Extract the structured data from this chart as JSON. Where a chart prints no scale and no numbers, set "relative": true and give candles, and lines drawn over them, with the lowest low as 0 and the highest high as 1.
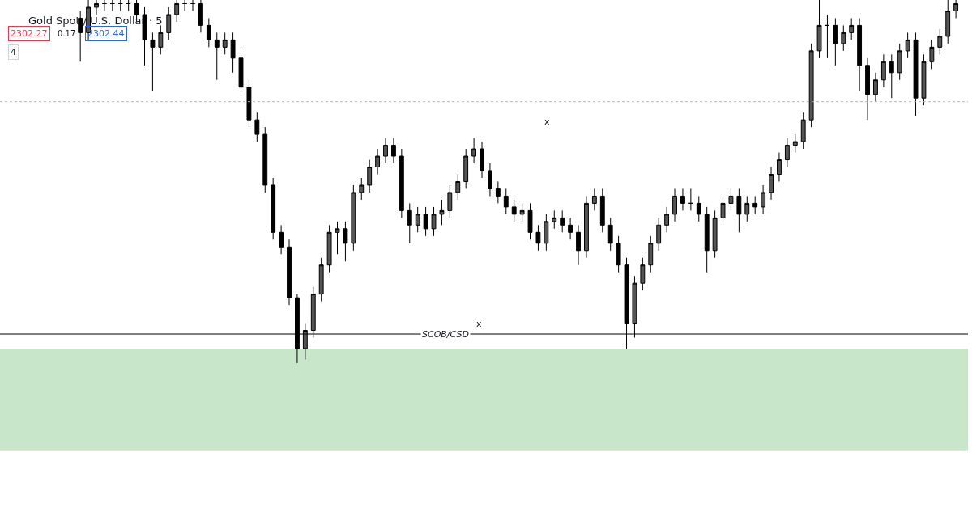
{
  "chart_data": {
    "type": "candlestick",
    "title": "Gold Spot / U.S. Dollar · 5",
    "relative": true,
    "color": "#000000",
    "categories": [
      null,
      null,
      null,
      null,
      null,
      null,
      null,
      null,
      null,
      null,
      null,
      null,
      null,
      null,
      null,
      null,
      null,
      null,
      null,
      null,
      null,
      null,
      null,
      null,
      null,
      null,
      null,
      null,
      null,
      null,
      null,
      null,
      null,
      null,
      null,
      null,
      null,
      null,
      null,
      null,
      null,
      null,
      null,
      null,
      null,
      null,
      null,
      null,
      null,
      null,
      null,
      null,
      null,
      null,
      null,
      null,
      null,
      null,
      null,
      null,
      null,
      null,
      null,
      null,
      null,
      null,
      null,
      null,
      null,
      null,
      null,
      null,
      null,
      null,
      null,
      null,
      null,
      null,
      null,
      null,
      null,
      null,
      null,
      null,
      null,
      null,
      null,
      null,
      null,
      null,
      null,
      null,
      null,
      null,
      null,
      null,
      null,
      null,
      null,
      null,
      null,
      null,
      null,
      null,
      null,
      null,
      null,
      null,
      null,
      null
    ],
    "ohlc": [
      [
        0.95,
        0.97,
        0.83,
        0.91
      ],
      [
        0.91,
        1.0,
        0.89,
        0.98
      ],
      [
        0.98,
        1.0,
        0.96,
        0.99
      ],
      [
        0.99,
        1.0,
        0.97,
        0.99
      ],
      [
        0.99,
        1.0,
        0.97,
        0.99
      ],
      [
        0.99,
        1.0,
        0.97,
        0.99
      ],
      [
        0.99,
        1.0,
        0.97,
        0.99
      ],
      [
        0.99,
        1.0,
        0.94,
        0.96
      ],
      [
        0.96,
        0.98,
        0.82,
        0.89
      ],
      [
        0.89,
        0.91,
        0.75,
        0.87
      ],
      [
        0.87,
        0.93,
        0.85,
        0.91
      ],
      [
        0.91,
        0.98,
        0.89,
        0.96
      ],
      [
        0.96,
        1.0,
        0.94,
        0.99
      ],
      [
        0.99,
        1.0,
        0.97,
        0.99
      ],
      [
        0.99,
        1.0,
        0.97,
        0.99
      ],
      [
        0.99,
        1.0,
        0.91,
        0.93
      ],
      [
        0.93,
        0.95,
        0.87,
        0.89
      ],
      [
        0.89,
        0.91,
        0.78,
        0.87
      ],
      [
        0.87,
        0.91,
        0.85,
        0.89
      ],
      [
        0.89,
        0.91,
        0.8,
        0.84
      ],
      [
        0.84,
        0.86,
        0.74,
        0.76
      ],
      [
        0.76,
        0.78,
        0.65,
        0.67
      ],
      [
        0.67,
        0.69,
        0.61,
        0.63
      ],
      [
        0.63,
        0.65,
        0.47,
        0.49
      ],
      [
        0.49,
        0.51,
        0.34,
        0.36
      ],
      [
        0.36,
        0.38,
        0.3,
        0.32
      ],
      [
        0.32,
        0.34,
        0.16,
        0.18
      ],
      [
        0.18,
        0.19,
        0.0,
        0.04
      ],
      [
        0.04,
        0.11,
        0.01,
        0.09
      ],
      [
        0.09,
        0.21,
        0.07,
        0.19
      ],
      [
        0.19,
        0.29,
        0.17,
        0.27
      ],
      [
        0.27,
        0.38,
        0.25,
        0.36
      ],
      [
        0.36,
        0.39,
        0.3,
        0.37
      ],
      [
        0.37,
        0.39,
        0.28,
        0.33
      ],
      [
        0.33,
        0.49,
        0.31,
        0.47
      ],
      [
        0.47,
        0.51,
        0.45,
        0.49
      ],
      [
        0.49,
        0.56,
        0.47,
        0.54
      ],
      [
        0.54,
        0.59,
        0.52,
        0.57
      ],
      [
        0.57,
        0.62,
        0.55,
        0.6
      ],
      [
        0.6,
        0.62,
        0.55,
        0.57
      ],
      [
        0.57,
        0.59,
        0.4,
        0.42
      ],
      [
        0.42,
        0.44,
        0.33,
        0.38
      ],
      [
        0.38,
        0.43,
        0.36,
        0.41
      ],
      [
        0.41,
        0.43,
        0.35,
        0.37
      ],
      [
        0.37,
        0.43,
        0.35,
        0.41
      ],
      [
        0.41,
        0.45,
        0.38,
        0.42
      ],
      [
        0.42,
        0.49,
        0.4,
        0.47
      ],
      [
        0.47,
        0.52,
        0.45,
        0.5
      ],
      [
        0.5,
        0.59,
        0.48,
        0.57
      ],
      [
        0.57,
        0.62,
        0.55,
        0.59
      ],
      [
        0.59,
        0.61,
        0.51,
        0.53
      ],
      [
        0.53,
        0.55,
        0.46,
        0.48
      ],
      [
        0.48,
        0.5,
        0.44,
        0.46
      ],
      [
        0.46,
        0.48,
        0.41,
        0.43
      ],
      [
        0.43,
        0.45,
        0.39,
        0.41
      ],
      [
        0.41,
        0.44,
        0.39,
        0.42
      ],
      [
        0.42,
        0.44,
        0.34,
        0.36
      ],
      [
        0.36,
        0.38,
        0.31,
        0.33
      ],
      [
        0.33,
        0.41,
        0.31,
        0.39
      ],
      [
        0.39,
        0.42,
        0.37,
        0.4
      ],
      [
        0.4,
        0.42,
        0.36,
        0.38
      ],
      [
        0.38,
        0.4,
        0.34,
        0.36
      ],
      [
        0.36,
        0.38,
        0.27,
        0.31
      ],
      [
        0.31,
        0.46,
        0.29,
        0.44
      ],
      [
        0.44,
        0.48,
        0.42,
        0.46
      ],
      [
        0.46,
        0.48,
        0.36,
        0.38
      ],
      [
        0.38,
        0.4,
        0.31,
        0.33
      ],
      [
        0.33,
        0.35,
        0.25,
        0.27
      ],
      [
        0.27,
        0.29,
        0.04,
        0.11
      ],
      [
        0.11,
        0.24,
        0.07,
        0.22
      ],
      [
        0.22,
        0.29,
        0.2,
        0.27
      ],
      [
        0.27,
        0.35,
        0.25,
        0.33
      ],
      [
        0.33,
        0.4,
        0.31,
        0.38
      ],
      [
        0.38,
        0.43,
        0.36,
        0.41
      ],
      [
        0.41,
        0.48,
        0.39,
        0.46
      ],
      [
        0.46,
        0.48,
        0.42,
        0.44
      ],
      [
        0.44,
        0.48,
        0.42,
        0.44
      ],
      [
        0.44,
        0.46,
        0.39,
        0.41
      ],
      [
        0.41,
        0.43,
        0.25,
        0.31
      ],
      [
        0.31,
        0.42,
        0.29,
        0.4
      ],
      [
        0.4,
        0.46,
        0.38,
        0.44
      ],
      [
        0.44,
        0.48,
        0.42,
        0.46
      ],
      [
        0.46,
        0.48,
        0.36,
        0.41
      ],
      [
        0.41,
        0.46,
        0.39,
        0.44
      ],
      [
        0.44,
        0.46,
        0.41,
        0.43
      ],
      [
        0.43,
        0.49,
        0.41,
        0.47
      ],
      [
        0.47,
        0.54,
        0.45,
        0.52
      ],
      [
        0.52,
        0.58,
        0.5,
        0.56
      ],
      [
        0.56,
        0.62,
        0.54,
        0.6
      ],
      [
        0.6,
        0.63,
        0.58,
        0.61
      ],
      [
        0.61,
        0.69,
        0.59,
        0.67
      ],
      [
        0.67,
        0.88,
        0.65,
        0.86
      ],
      [
        0.86,
        1.0,
        0.84,
        0.93
      ],
      [
        0.93,
        0.96,
        0.84,
        0.93
      ],
      [
        0.93,
        0.95,
        0.82,
        0.88
      ],
      [
        0.88,
        0.93,
        0.86,
        0.91
      ],
      [
        0.91,
        0.95,
        0.89,
        0.93
      ],
      [
        0.93,
        0.95,
        0.75,
        0.82
      ],
      [
        0.82,
        0.84,
        0.67,
        0.74
      ],
      [
        0.74,
        0.8,
        0.72,
        0.78
      ],
      [
        0.78,
        0.85,
        0.76,
        0.83
      ],
      [
        0.83,
        0.85,
        0.73,
        0.8
      ],
      [
        0.8,
        0.88,
        0.78,
        0.86
      ],
      [
        0.86,
        0.91,
        0.84,
        0.89
      ],
      [
        0.89,
        0.91,
        0.68,
        0.73
      ],
      [
        0.73,
        0.85,
        0.71,
        0.83
      ],
      [
        0.83,
        0.89,
        0.81,
        0.87
      ],
      [
        0.87,
        0.92,
        0.85,
        0.9
      ],
      [
        0.9,
        1.0,
        0.88,
        0.97
      ],
      [
        0.97,
        1.0,
        0.95,
        0.99
      ]
    ],
    "bands": [
      {
        "axis": "y",
        "from": -0.24,
        "to": 0.04,
        "color": "#c8e6c9"
      }
    ],
    "ref_lines": [
      {
        "axis": "y",
        "value": 0.72,
        "color": "#b2b5be",
        "line_style": "dotted"
      },
      {
        "axis": "y",
        "value": 0.08,
        "color": "#000000",
        "line_style": "solid",
        "label": "SCOB/CSD"
      }
    ],
    "annotations": [
      "2302.27",
      "0.17",
      "2302.44",
      "4",
      "x",
      "x"
    ]
  }
}
